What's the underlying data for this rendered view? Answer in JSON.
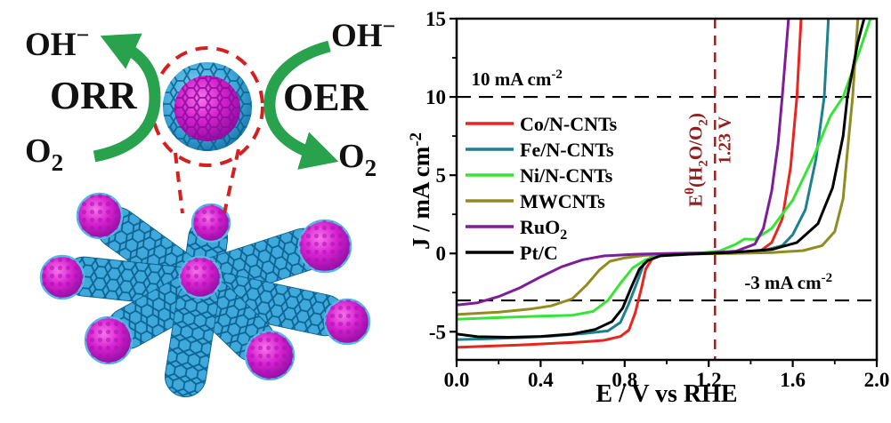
{
  "schematic": {
    "orr_label": "ORR",
    "oer_label": "OER",
    "oh_left": {
      "base": "OH",
      "sup": "−"
    },
    "oh_right": {
      "base": "OH",
      "sup": "−"
    },
    "o2_left": {
      "base": "O",
      "sub": "2"
    },
    "o2_right": {
      "base": "O",
      "sub": "2"
    },
    "colors": {
      "arrow_green": "#28a24c",
      "callout_red": "#d42020",
      "tube_blue": "#3fa9dc",
      "tube_mesh_blue": "#0c6394",
      "particle_magenta": "#d621ce",
      "particle_dark": "#7e0a94"
    }
  },
  "chart_data": {
    "type": "line",
    "title": "",
    "xlabel": "E / V vs RHE",
    "ylabel": {
      "text": "J / mA cm",
      "sup": "-2"
    },
    "xlim": [
      0,
      2
    ],
    "ylim": [
      -6.8,
      15
    ],
    "grid": false,
    "legend_position": "upper-left-inside",
    "x_ticks": [
      0.0,
      0.4,
      0.8,
      1.2,
      1.6,
      2.0
    ],
    "x_tick_labels": [
      "0.0",
      "0.4",
      "0.8",
      "1.2",
      "1.6",
      "2.0"
    ],
    "x_minor_ticks": [
      0.2,
      0.6,
      1.0,
      1.4,
      1.8
    ],
    "y_ticks": [
      15,
      10,
      5,
      0,
      -5
    ],
    "y_tick_labels": [
      "15",
      "10",
      "5",
      "0",
      "-5"
    ],
    "y_minor_ticks": [
      12.5,
      7.5,
      2.5,
      -2.5
    ],
    "reference_lines": {
      "h10": {
        "value": 10,
        "color": "#000000",
        "label": {
          "text": "10 mA cm",
          "sup": "-2"
        }
      },
      "hm3": {
        "value": -3,
        "color": "#000000",
        "label": {
          "text": "-3 mA cm",
          "sup": "-2"
        }
      },
      "vline": {
        "value": 1.23,
        "color": "#951d1d",
        "label": {
          "pre": "E",
          "sup": "θ",
          "p1": "(H",
          "sub1": "2",
          "p2": "O/O",
          "sub2": "2",
          "p3": ")"
        },
        "value_label": "1.23 V"
      }
    },
    "series": [
      {
        "name": "Co/N-CNTs",
        "name_sub": "",
        "color": "#e8251f",
        "points": [
          [
            0,
            -6.0
          ],
          [
            0.15,
            -5.92
          ],
          [
            0.3,
            -5.85
          ],
          [
            0.45,
            -5.75
          ],
          [
            0.6,
            -5.65
          ],
          [
            0.7,
            -5.55
          ],
          [
            0.78,
            -5.3
          ],
          [
            0.82,
            -4.9
          ],
          [
            0.85,
            -3.8
          ],
          [
            0.88,
            -2.2
          ],
          [
            0.9,
            -1.0
          ],
          [
            0.93,
            -0.35
          ],
          [
            0.97,
            -0.12
          ],
          [
            1.05,
            -0.03
          ],
          [
            1.2,
            0
          ],
          [
            1.35,
            0.05
          ],
          [
            1.45,
            0.2
          ],
          [
            1.5,
            0.7
          ],
          [
            1.55,
            2.2
          ],
          [
            1.59,
            5.5
          ],
          [
            1.62,
            10
          ],
          [
            1.64,
            15
          ]
        ]
      },
      {
        "name": "Fe/N-CNTs",
        "name_sub": "",
        "color": "#1d808d",
        "points": [
          [
            0,
            -5.5
          ],
          [
            0.15,
            -5.45
          ],
          [
            0.3,
            -5.38
          ],
          [
            0.45,
            -5.28
          ],
          [
            0.6,
            -5.12
          ],
          [
            0.72,
            -4.95
          ],
          [
            0.78,
            -4.4
          ],
          [
            0.82,
            -3.2
          ],
          [
            0.86,
            -1.8
          ],
          [
            0.89,
            -0.7
          ],
          [
            0.92,
            -0.3
          ],
          [
            0.98,
            -0.1
          ],
          [
            1.1,
            -0.02
          ],
          [
            1.3,
            0.03
          ],
          [
            1.45,
            0.15
          ],
          [
            1.55,
            0.5
          ],
          [
            1.6,
            1.2
          ],
          [
            1.66,
            2.8
          ],
          [
            1.71,
            6.0
          ],
          [
            1.75,
            10
          ],
          [
            1.77,
            15
          ]
        ]
      },
      {
        "name": "Ni/N-CNTs",
        "name_sub": "",
        "color": "#35e535",
        "points": [
          [
            0,
            -4.2
          ],
          [
            0.2,
            -4.1
          ],
          [
            0.4,
            -4.0
          ],
          [
            0.55,
            -3.95
          ],
          [
            0.65,
            -3.7
          ],
          [
            0.72,
            -3.0
          ],
          [
            0.78,
            -1.9
          ],
          [
            0.84,
            -0.9
          ],
          [
            0.9,
            -0.4
          ],
          [
            0.96,
            -0.15
          ],
          [
            1.1,
            -0.05
          ],
          [
            1.25,
            0.15
          ],
          [
            1.33,
            0.6
          ],
          [
            1.37,
            0.92
          ],
          [
            1.42,
            0.9
          ],
          [
            1.5,
            1.6
          ],
          [
            1.6,
            3.4
          ],
          [
            1.7,
            6.2
          ],
          [
            1.78,
            8.8
          ],
          [
            1.84,
            10
          ],
          [
            1.92,
            13
          ],
          [
            1.97,
            15
          ]
        ]
      },
      {
        "name": "MWCNTs",
        "name_sub": "",
        "color": "#918c1f",
        "points": [
          [
            0,
            -3.9
          ],
          [
            0.2,
            -3.75
          ],
          [
            0.35,
            -3.55
          ],
          [
            0.45,
            -3.35
          ],
          [
            0.55,
            -2.9
          ],
          [
            0.62,
            -2.0
          ],
          [
            0.68,
            -1.05
          ],
          [
            0.73,
            -0.5
          ],
          [
            0.8,
            -0.28
          ],
          [
            0.9,
            -0.12
          ],
          [
            1.1,
            -0.04
          ],
          [
            1.3,
            0
          ],
          [
            1.5,
            0.06
          ],
          [
            1.65,
            0.18
          ],
          [
            1.74,
            0.5
          ],
          [
            1.8,
            1.4
          ],
          [
            1.84,
            3.5
          ],
          [
            1.86,
            6.5
          ],
          [
            1.885,
            10
          ],
          [
            1.9,
            13
          ],
          [
            1.91,
            15
          ]
        ]
      },
      {
        "name": "RuO",
        "name_sub": "2",
        "color": "#7e1d99",
        "points": [
          [
            0,
            -3.3
          ],
          [
            0.1,
            -3.15
          ],
          [
            0.2,
            -2.75
          ],
          [
            0.3,
            -2.2
          ],
          [
            0.4,
            -1.5
          ],
          [
            0.5,
            -0.85
          ],
          [
            0.6,
            -0.4
          ],
          [
            0.7,
            -0.16
          ],
          [
            0.85,
            -0.05
          ],
          [
            1.0,
            0
          ],
          [
            1.2,
            0.04
          ],
          [
            1.33,
            0.15
          ],
          [
            1.42,
            0.6
          ],
          [
            1.46,
            1.6
          ],
          [
            1.5,
            4.0
          ],
          [
            1.53,
            7.0
          ],
          [
            1.55,
            10
          ],
          [
            1.58,
            15
          ]
        ]
      },
      {
        "name": "Pt/C",
        "name_sub": "",
        "color": "#000000",
        "points": [
          [
            0,
            -5.15
          ],
          [
            0.1,
            -5.32
          ],
          [
            0.25,
            -5.35
          ],
          [
            0.4,
            -5.3
          ],
          [
            0.55,
            -5.15
          ],
          [
            0.66,
            -4.85
          ],
          [
            0.74,
            -4.35
          ],
          [
            0.79,
            -3.5
          ],
          [
            0.83,
            -2.2
          ],
          [
            0.87,
            -1.0
          ],
          [
            0.91,
            -0.45
          ],
          [
            0.97,
            -0.15
          ],
          [
            1.1,
            -0.05
          ],
          [
            1.3,
            0.05
          ],
          [
            1.5,
            0.25
          ],
          [
            1.62,
            0.7
          ],
          [
            1.72,
            1.9
          ],
          [
            1.79,
            4.2
          ],
          [
            1.84,
            7.5
          ],
          [
            1.86,
            10
          ],
          [
            1.91,
            13.5
          ],
          [
            1.94,
            15
          ]
        ]
      }
    ]
  }
}
